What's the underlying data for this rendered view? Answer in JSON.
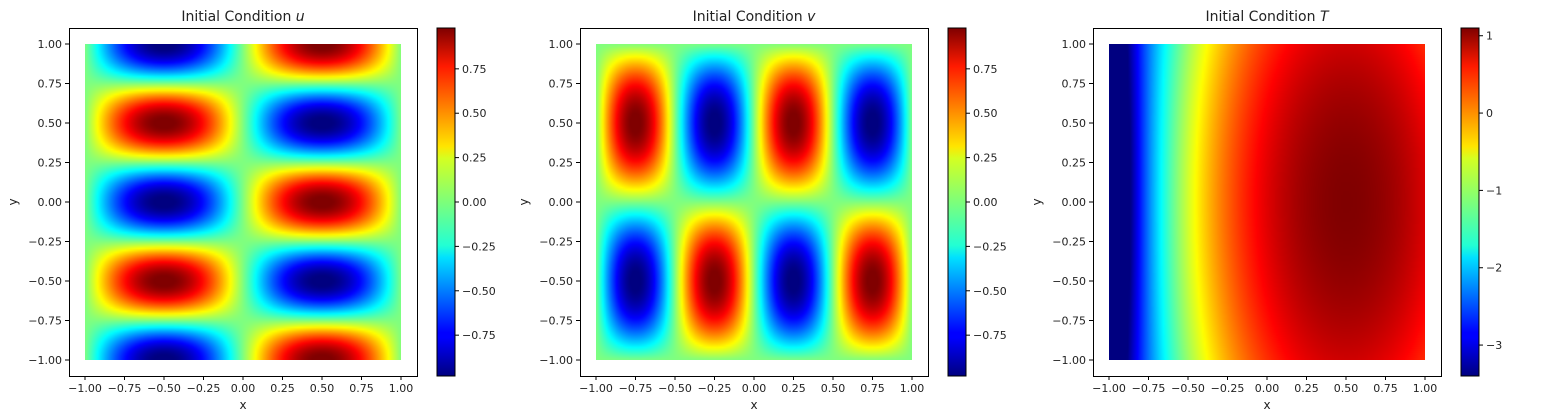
{
  "chart_data": [
    {
      "type": "heatmap",
      "title": "Initial Condition u",
      "title_prefix": "Initial Condition",
      "title_var": "u",
      "xlabel": "x",
      "ylabel": "y",
      "xlim": [
        -1.0,
        1.0
      ],
      "ylim": [
        -1.0,
        1.0
      ],
      "xticks": [
        "-1.00",
        "-0.75",
        "-0.50",
        "-0.25",
        "0.00",
        "0.25",
        "0.50",
        "0.75",
        "1.00"
      ],
      "yticks": [
        "-1.00",
        "-0.75",
        "-0.50",
        "-0.25",
        "0.00",
        "0.25",
        "0.50",
        "0.75",
        "1.00"
      ],
      "colorbar_range": [
        -0.98,
        0.98
      ],
      "colorbar_ticks": [
        "-0.75",
        "-0.50",
        "-0.25",
        "0.00",
        "0.25",
        "0.50",
        "0.75"
      ],
      "colormap": "jet",
      "field": "u = sin(pi x) * cos(2 pi y)"
    },
    {
      "type": "heatmap",
      "title": "Initial Condition v",
      "title_prefix": "Initial Condition",
      "title_var": "v",
      "xlabel": "x",
      "ylabel": "y",
      "xlim": [
        -1.0,
        1.0
      ],
      "ylim": [
        -1.0,
        1.0
      ],
      "xticks": [
        "-1.00",
        "-0.75",
        "-0.50",
        "-0.25",
        "0.00",
        "0.25",
        "0.50",
        "0.75",
        "1.00"
      ],
      "yticks": [
        "-1.00",
        "-0.75",
        "-0.50",
        "-0.25",
        "0.00",
        "0.25",
        "0.50",
        "0.75",
        "1.00"
      ],
      "colorbar_range": [
        -0.98,
        0.98
      ],
      "colorbar_ticks": [
        "-0.75",
        "-0.50",
        "-0.25",
        "0.00",
        "0.25",
        "0.50",
        "0.75"
      ],
      "colormap": "jet",
      "field": "v = sin(2 pi x) * sin(pi y)"
    },
    {
      "type": "heatmap",
      "title": "Initial Condition T",
      "title_prefix": "Initial Condition",
      "title_var": "T",
      "xlabel": "x",
      "ylabel": "y",
      "xlim": [
        -1.0,
        1.0
      ],
      "ylim": [
        -1.0,
        1.0
      ],
      "xticks": [
        "-1.00",
        "-0.75",
        "-0.50",
        "-0.25",
        "0.00",
        "0.25",
        "0.50",
        "0.75",
        "1.00"
      ],
      "yticks": [
        "-1.00",
        "-0.75",
        "-0.50",
        "-0.25",
        "0.00",
        "0.25",
        "0.50",
        "0.75",
        "1.00"
      ],
      "colorbar_range": [
        -3.4,
        1.1
      ],
      "colorbar_ticks": [
        "-3",
        "-2",
        "-1",
        "0",
        "1"
      ],
      "colormap": "jet",
      "field": "T rises from about -3.4 at x = -1 to about 1.1 near (0.5, 0)"
    }
  ]
}
